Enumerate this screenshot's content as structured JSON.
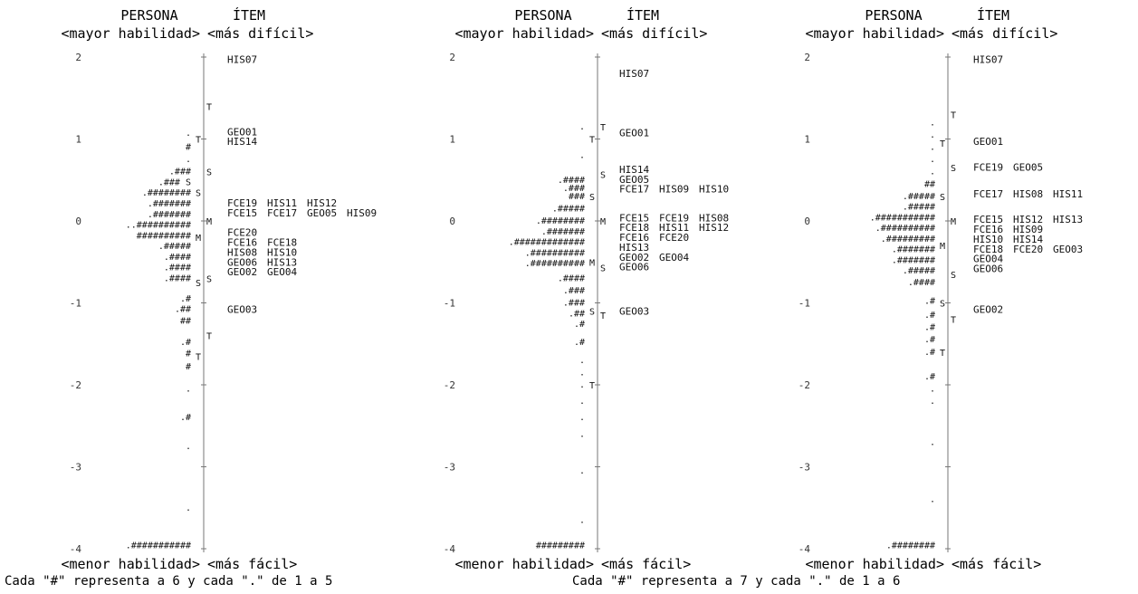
{
  "chart_data": [
    {
      "type": "wright-map",
      "headers": {
        "persona": "PERSONA",
        "item": "ÍTEM",
        "left_top": "<mayor habilidad>",
        "right_top": "<más difícil>",
        "left_bottom": "<menor habilidad>",
        "right_bottom": "<más fácil>"
      },
      "caption": "Cada \"#\" representa a 6 y cada \".\" de 1 a 5",
      "y_ticks": [
        2,
        1,
        0,
        -1,
        -2,
        -3,
        -4
      ],
      "ylim": [
        -4,
        2
      ],
      "person_markers": [
        {
          "label": "M",
          "y": -0.2
        },
        {
          "label": "S",
          "y": 0.35
        },
        {
          "label": "S",
          "y": -0.75
        },
        {
          "label": "T",
          "y": 1.0
        },
        {
          "label": "T",
          "y": -1.65
        }
      ],
      "item_markers": [
        {
          "label": "M",
          "y": 0.0
        },
        {
          "label": "S",
          "y": 0.6
        },
        {
          "label": "S",
          "y": -0.7
        },
        {
          "label": "T",
          "y": 1.4
        },
        {
          "label": "T",
          "y": -1.4
        }
      ],
      "persons": [
        {
          "y": 1.07,
          "text": "."
        },
        {
          "y": 0.9,
          "text": "#"
        },
        {
          "y": 0.75,
          "text": "."
        },
        {
          "y": 0.6,
          "text": ".###"
        },
        {
          "y": 0.47,
          "text": ".### S"
        },
        {
          "y": 0.34,
          "text": ".########"
        },
        {
          "y": 0.21,
          "text": ".#######"
        },
        {
          "y": 0.08,
          "text": ".#######"
        },
        {
          "y": -0.05,
          "text": "..##########"
        },
        {
          "y": -0.18,
          "text": "##########"
        },
        {
          "y": -0.31,
          "text": ".#####"
        },
        {
          "y": -0.44,
          "text": ".####"
        },
        {
          "y": -0.57,
          "text": ".####"
        },
        {
          "y": -0.7,
          "text": ".####"
        },
        {
          "y": -0.95,
          "text": ".#"
        },
        {
          "y": -1.08,
          "text": ".##"
        },
        {
          "y": -1.22,
          "text": "##"
        },
        {
          "y": -1.48,
          "text": ".#"
        },
        {
          "y": -1.62,
          "text": "#"
        },
        {
          "y": -1.78,
          "text": "#"
        },
        {
          "y": -2.05,
          "text": "."
        },
        {
          "y": -2.4,
          "text": ".#"
        },
        {
          "y": -2.75,
          "text": "."
        },
        {
          "y": -3.5,
          "text": "."
        },
        {
          "y": -3.96,
          "text": ".###########"
        }
      ],
      "items": [
        {
          "y": 1.97,
          "labels": [
            "HIS07"
          ]
        },
        {
          "y": 1.09,
          "labels": [
            "GEO01"
          ]
        },
        {
          "y": 0.97,
          "labels": [
            "HIS14"
          ]
        },
        {
          "y": 0.22,
          "labels": [
            "FCE19",
            "HIS11",
            "HIS12"
          ]
        },
        {
          "y": 0.1,
          "labels": [
            "FCE15",
            "FCE17",
            "GEO05",
            "HIS09"
          ]
        },
        {
          "y": -0.14,
          "labels": [
            "FCE20"
          ]
        },
        {
          "y": -0.26,
          "labels": [
            "FCE16",
            "FCE18"
          ]
        },
        {
          "y": -0.38,
          "labels": [
            "HIS08",
            "HIS10"
          ]
        },
        {
          "y": -0.5,
          "labels": [
            "GEO06",
            "HIS13"
          ]
        },
        {
          "y": -0.62,
          "labels": [
            "GEO02",
            "GEO04"
          ]
        },
        {
          "y": -1.08,
          "labels": [
            "GEO03"
          ]
        }
      ]
    },
    {
      "type": "wright-map",
      "headers": {
        "persona": "PERSONA",
        "item": "ÍTEM",
        "left_top": "<mayor habilidad>",
        "right_top": "<más difícil>",
        "left_bottom": "<menor habilidad>",
        "right_bottom": "<más fácil>"
      },
      "caption": "Cada \"#\" representa a 7 y cada \".\" de 1 a 6",
      "y_ticks": [
        2,
        1,
        0,
        -1,
        -2,
        -3,
        -4
      ],
      "ylim": [
        -4,
        2
      ],
      "person_markers": [
        {
          "label": "M",
          "y": -0.5
        },
        {
          "label": "S",
          "y": 0.3
        },
        {
          "label": "S",
          "y": -1.1
        },
        {
          "label": "T",
          "y": 1.0
        },
        {
          "label": "T",
          "y": -2.0
        }
      ],
      "item_markers": [
        {
          "label": "M",
          "y": 0.0
        },
        {
          "label": "S",
          "y": 0.57
        },
        {
          "label": "S",
          "y": -0.57
        },
        {
          "label": "T",
          "y": 1.15
        },
        {
          "label": "T",
          "y": -1.15
        }
      ],
      "persons": [
        {
          "y": 1.15,
          "text": "."
        },
        {
          "y": 0.8,
          "text": "."
        },
        {
          "y": 0.5,
          "text": ".####"
        },
        {
          "y": 0.4,
          "text": ".###"
        },
        {
          "y": 0.3,
          "text": "###"
        },
        {
          "y": 0.15,
          "text": ".#####"
        },
        {
          "y": 0.0,
          "text": ".########"
        },
        {
          "y": -0.13,
          "text": ".#######"
        },
        {
          "y": -0.26,
          "text": ".#############"
        },
        {
          "y": -0.39,
          "text": ".##########"
        },
        {
          "y": -0.52,
          "text": ".##########"
        },
        {
          "y": -0.7,
          "text": ".####"
        },
        {
          "y": -0.85,
          "text": ".###"
        },
        {
          "y": -1.0,
          "text": ".###"
        },
        {
          "y": -1.13,
          "text": ".##"
        },
        {
          "y": -1.26,
          "text": ".#"
        },
        {
          "y": -1.48,
          "text": ".#"
        },
        {
          "y": -1.7,
          "text": "."
        },
        {
          "y": -1.85,
          "text": "."
        },
        {
          "y": -2.0,
          "text": "."
        },
        {
          "y": -2.2,
          "text": "."
        },
        {
          "y": -2.4,
          "text": "."
        },
        {
          "y": -2.6,
          "text": "."
        },
        {
          "y": -3.05,
          "text": "."
        },
        {
          "y": -3.65,
          "text": "."
        },
        {
          "y": -3.96,
          "text": "#########"
        }
      ],
      "items": [
        {
          "y": 1.8,
          "labels": [
            "HIS07"
          ]
        },
        {
          "y": 1.08,
          "labels": [
            "GEO01"
          ]
        },
        {
          "y": 0.63,
          "labels": [
            "HIS14"
          ]
        },
        {
          "y": 0.51,
          "labels": [
            "GEO05"
          ]
        },
        {
          "y": 0.39,
          "labels": [
            "FCE17",
            "HIS09",
            "HIS10"
          ]
        },
        {
          "y": 0.04,
          "labels": [
            "FCE15",
            "FCE19",
            "HIS08"
          ]
        },
        {
          "y": -0.08,
          "labels": [
            "FCE18",
            "HIS11",
            "HIS12"
          ]
        },
        {
          "y": -0.2,
          "labels": [
            "FCE16",
            "FCE20"
          ]
        },
        {
          "y": -0.32,
          "labels": [
            "HIS13"
          ]
        },
        {
          "y": -0.44,
          "labels": [
            "GEO02",
            "GEO04"
          ]
        },
        {
          "y": -0.56,
          "labels": [
            "GEO06"
          ]
        },
        {
          "y": -1.1,
          "labels": [
            "GEO03"
          ]
        }
      ]
    },
    {
      "type": "wright-map",
      "headers": {
        "persona": "PERSONA",
        "item": "ÍTEM",
        "left_top": "<mayor habilidad>",
        "right_top": "<más difícil>",
        "left_bottom": "<menor habilidad>",
        "right_bottom": "<más fácil>"
      },
      "caption": "",
      "y_ticks": [
        2,
        1,
        0,
        -1,
        -2,
        -3,
        -4
      ],
      "ylim": [
        -4,
        2
      ],
      "person_markers": [
        {
          "label": "M",
          "y": -0.3
        },
        {
          "label": "S",
          "y": 0.3
        },
        {
          "label": "S",
          "y": -1.0
        },
        {
          "label": "T",
          "y": 0.95
        },
        {
          "label": "T",
          "y": -1.6
        }
      ],
      "item_markers": [
        {
          "label": "M",
          "y": 0.0
        },
        {
          "label": "S",
          "y": 0.65
        },
        {
          "label": "S",
          "y": -0.65
        },
        {
          "label": "T",
          "y": 1.3
        },
        {
          "label": "T",
          "y": -1.2
        }
      ],
      "persons": [
        {
          "y": 1.2,
          "text": "."
        },
        {
          "y": 1.05,
          "text": "."
        },
        {
          "y": 0.9,
          "text": "."
        },
        {
          "y": 0.75,
          "text": "."
        },
        {
          "y": 0.6,
          "text": "."
        },
        {
          "y": 0.45,
          "text": "##"
        },
        {
          "y": 0.3,
          "text": ".#####"
        },
        {
          "y": 0.17,
          "text": ".#####"
        },
        {
          "y": 0.04,
          "text": ".###########"
        },
        {
          "y": -0.09,
          "text": ".##########"
        },
        {
          "y": -0.22,
          "text": ".#########"
        },
        {
          "y": -0.35,
          "text": ".#######"
        },
        {
          "y": -0.48,
          "text": ".#######"
        },
        {
          "y": -0.61,
          "text": ".#####"
        },
        {
          "y": -0.75,
          "text": ".####"
        },
        {
          "y": -0.98,
          "text": ".#"
        },
        {
          "y": -1.15,
          "text": ".#"
        },
        {
          "y": -1.3,
          "text": ".#"
        },
        {
          "y": -1.45,
          "text": ".#"
        },
        {
          "y": -1.6,
          "text": ".#"
        },
        {
          "y": -1.9,
          "text": ".#"
        },
        {
          "y": -2.05,
          "text": "."
        },
        {
          "y": -2.2,
          "text": "."
        },
        {
          "y": -2.7,
          "text": "."
        },
        {
          "y": -3.4,
          "text": "."
        },
        {
          "y": -3.96,
          "text": ".########"
        }
      ],
      "items": [
        {
          "y": 1.97,
          "labels": [
            "HIS07"
          ]
        },
        {
          "y": 0.97,
          "labels": [
            "GEO01"
          ]
        },
        {
          "y": 0.66,
          "labels": [
            "FCE19",
            "GEO05"
          ]
        },
        {
          "y": 0.33,
          "labels": [
            "FCE17",
            "HIS08",
            "HIS11"
          ]
        },
        {
          "y": 0.02,
          "labels": [
            "FCE15",
            "HIS12",
            "HIS13"
          ]
        },
        {
          "y": -0.1,
          "labels": [
            "FCE16",
            "HIS09"
          ]
        },
        {
          "y": -0.22,
          "labels": [
            "HIS10",
            "HIS14"
          ]
        },
        {
          "y": -0.34,
          "labels": [
            "FCE18",
            "FCE20",
            "GEO03"
          ]
        },
        {
          "y": -0.46,
          "labels": [
            "GEO04"
          ]
        },
        {
          "y": -0.58,
          "labels": [
            "GEO06"
          ]
        },
        {
          "y": -1.08,
          "labels": [
            "GEO02"
          ]
        }
      ]
    }
  ]
}
